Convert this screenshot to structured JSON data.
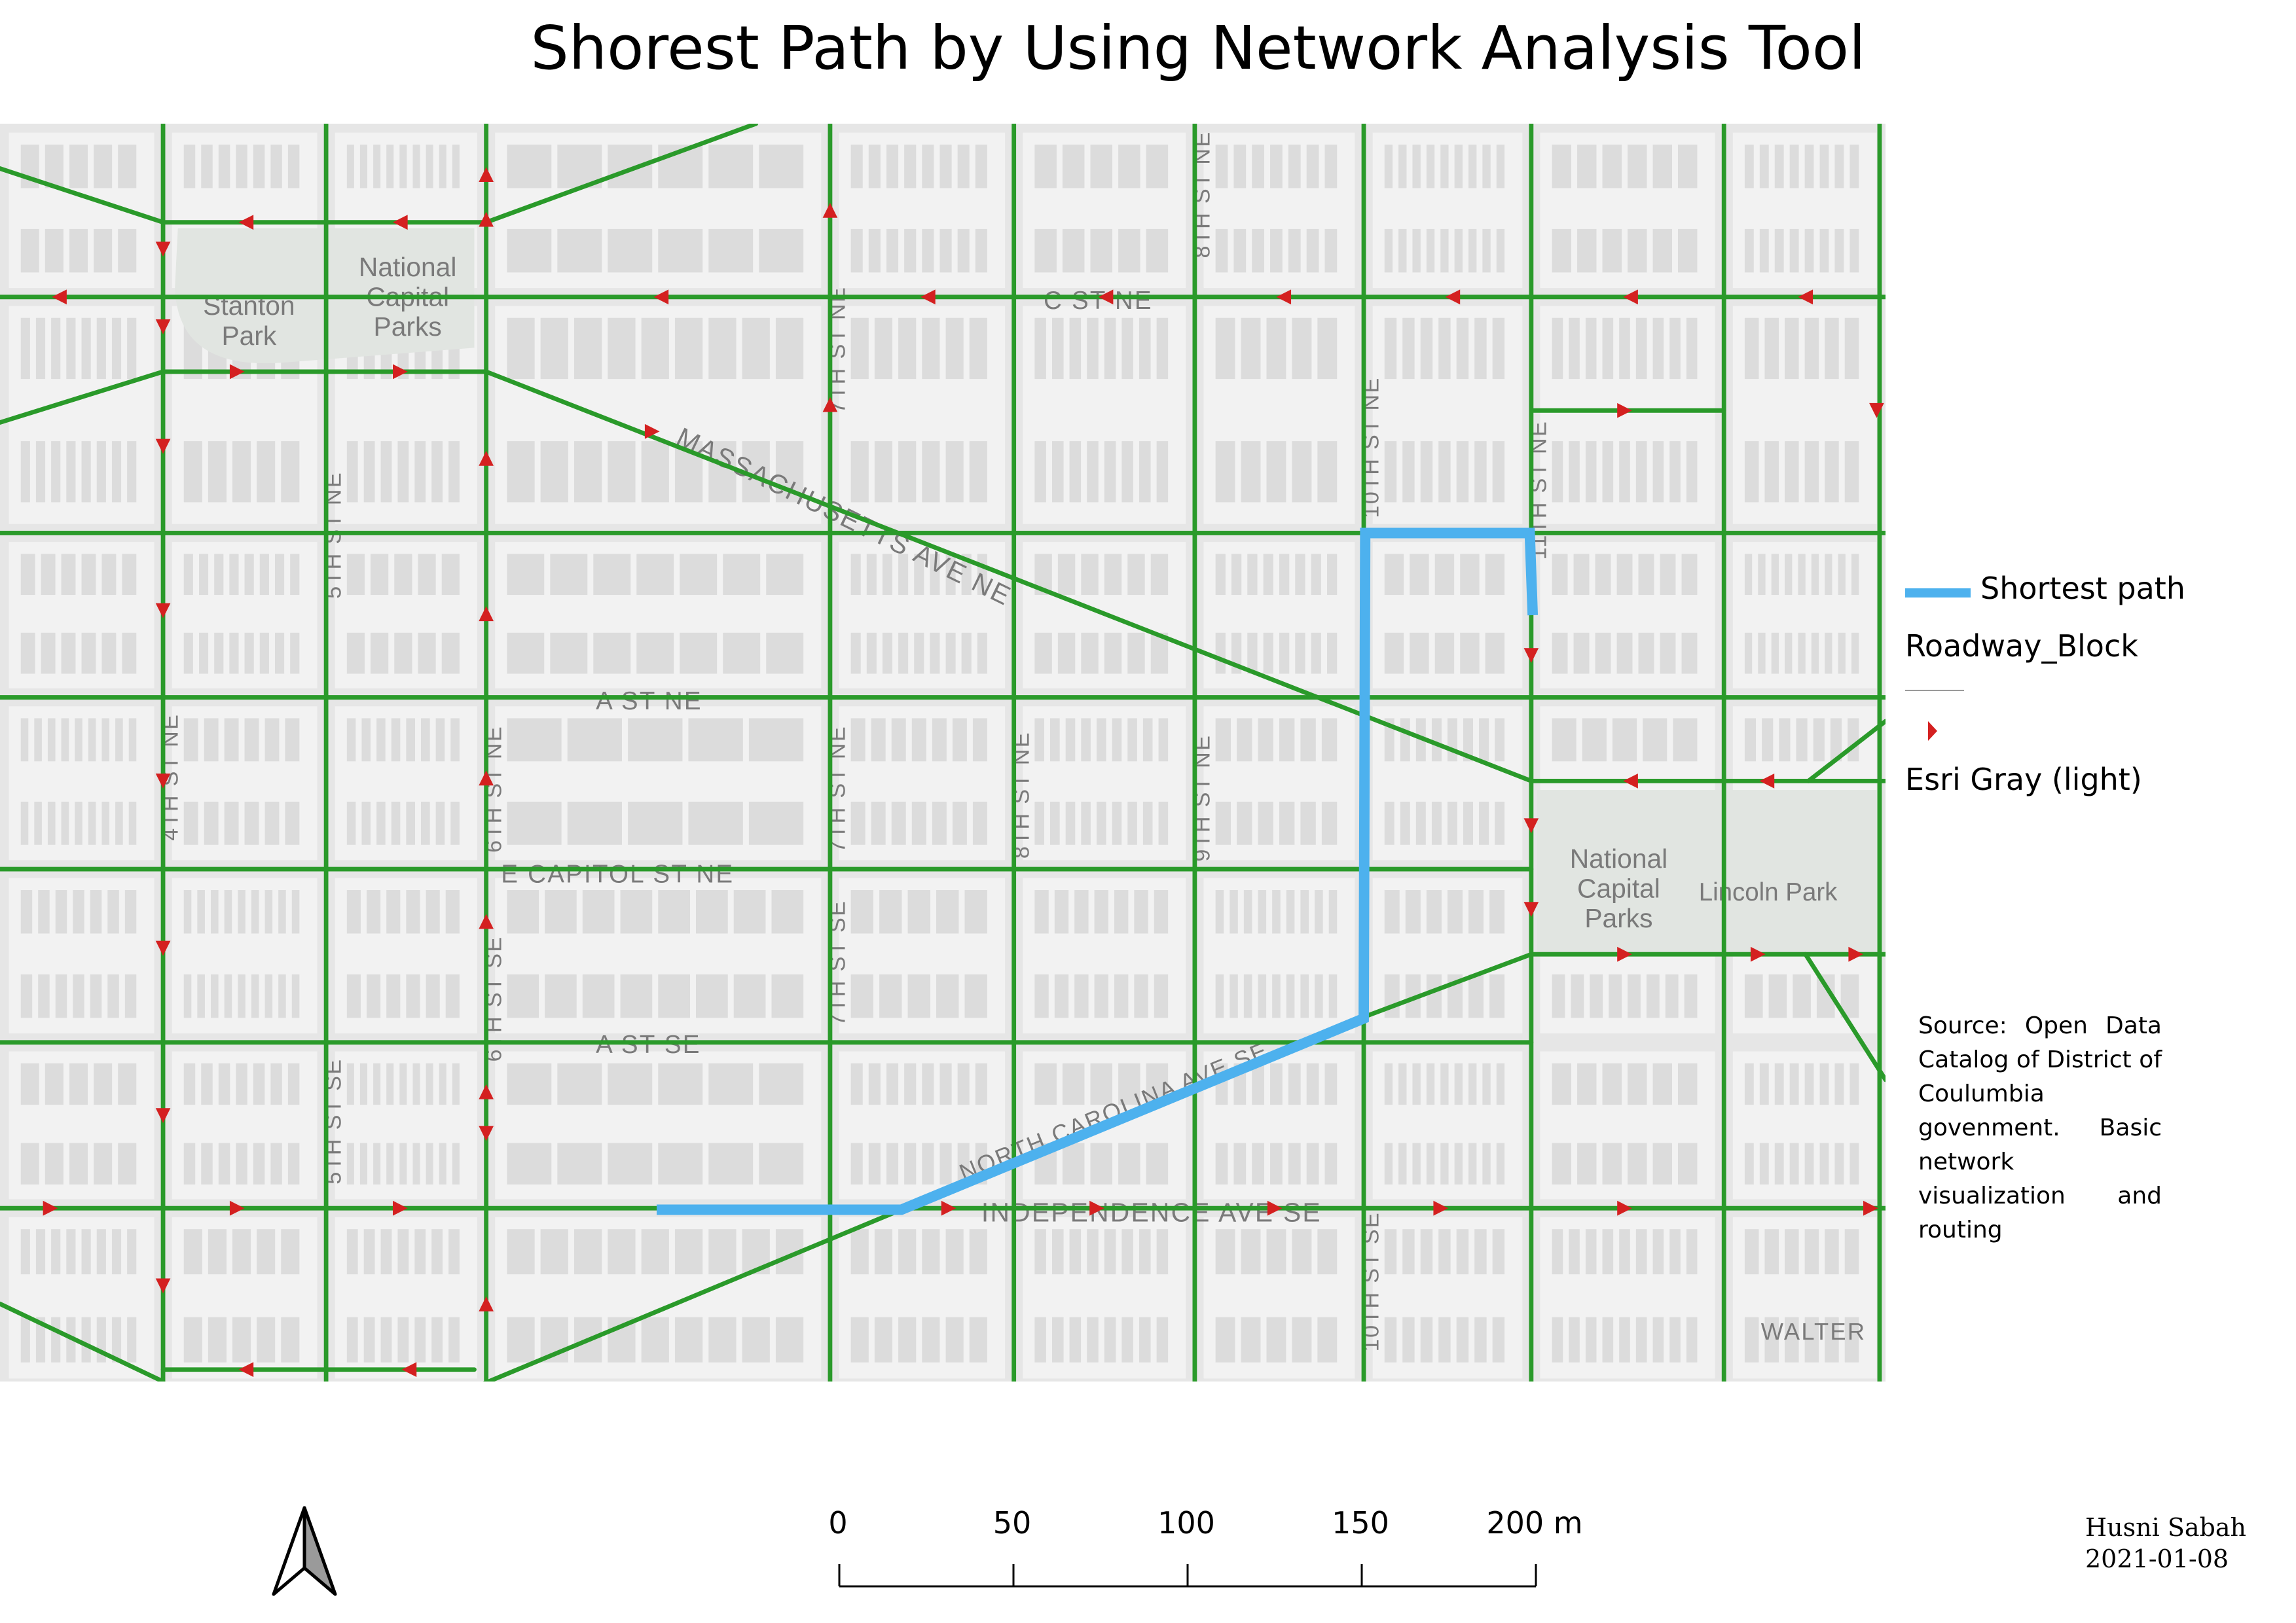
{
  "title": "Shorest Path by Using Network Analysis Tool",
  "map": {
    "basemap": "Esri Gray (light)",
    "colors": {
      "background": "#e6e6e6",
      "block": "#f2f2f2",
      "building": "#dcdcdc",
      "park": "#e1e5e1",
      "road": "#2a9a2a",
      "arrow": "#d42020",
      "path": "#4db1ee",
      "label": "#7a7a7a"
    },
    "street_labels": {
      "mass_ave": "MASSACHUSETTS AVE NE",
      "c_st_ne": "C ST NE",
      "a_st_ne": "A ST NE",
      "e_capitol": "E CAPITOL ST NE",
      "a_st_se": "A ST SE",
      "independence": "INDEPENDENCE AVE SE",
      "nc_ave": "NORTH CAROLINA AVE SE",
      "walter": "WALTER",
      "v_4th_ne": "4TH ST NE",
      "v_5th_ne": "5TH ST NE",
      "v_6th_ne": "6TH ST NE",
      "v_7th_ne_top": "7TH ST NE",
      "v_7th_ne": "7TH ST NE",
      "v_8th_ne_top": "8TH ST NE",
      "v_8th_ne": "8TH ST NE",
      "v_9th_ne": "9TH ST NE",
      "v_10th_ne": "10TH ST NE",
      "v_11th_ne": "11TH ST NE",
      "v_5th_se": "5TH ST SE",
      "v_6th_se": "6TH ST SE",
      "v_7th_se": "7TH ST SE",
      "v_10th_se": "10TH ST SE"
    },
    "park_labels": {
      "stanton": [
        "Stanton",
        "Park"
      ],
      "ncp_top": [
        "National",
        "Capital",
        "Parks"
      ],
      "ncp_right": [
        "National",
        "Capital",
        "Parks"
      ],
      "lincoln": "Lincoln Park"
    }
  },
  "legend": {
    "path_label": "Shortest path",
    "layer_label": "Roadway_Block",
    "basemap_label": "Esri Gray (light)"
  },
  "source": "Source: Open Data Catalog of District of Coulumbia govenment. Basic network visualization and routing",
  "scalebar": {
    "ticks": [
      "0",
      "50",
      "100",
      "150",
      "200 m"
    ]
  },
  "author": {
    "name": "Husni Sabah",
    "date": "2021-01-08"
  }
}
